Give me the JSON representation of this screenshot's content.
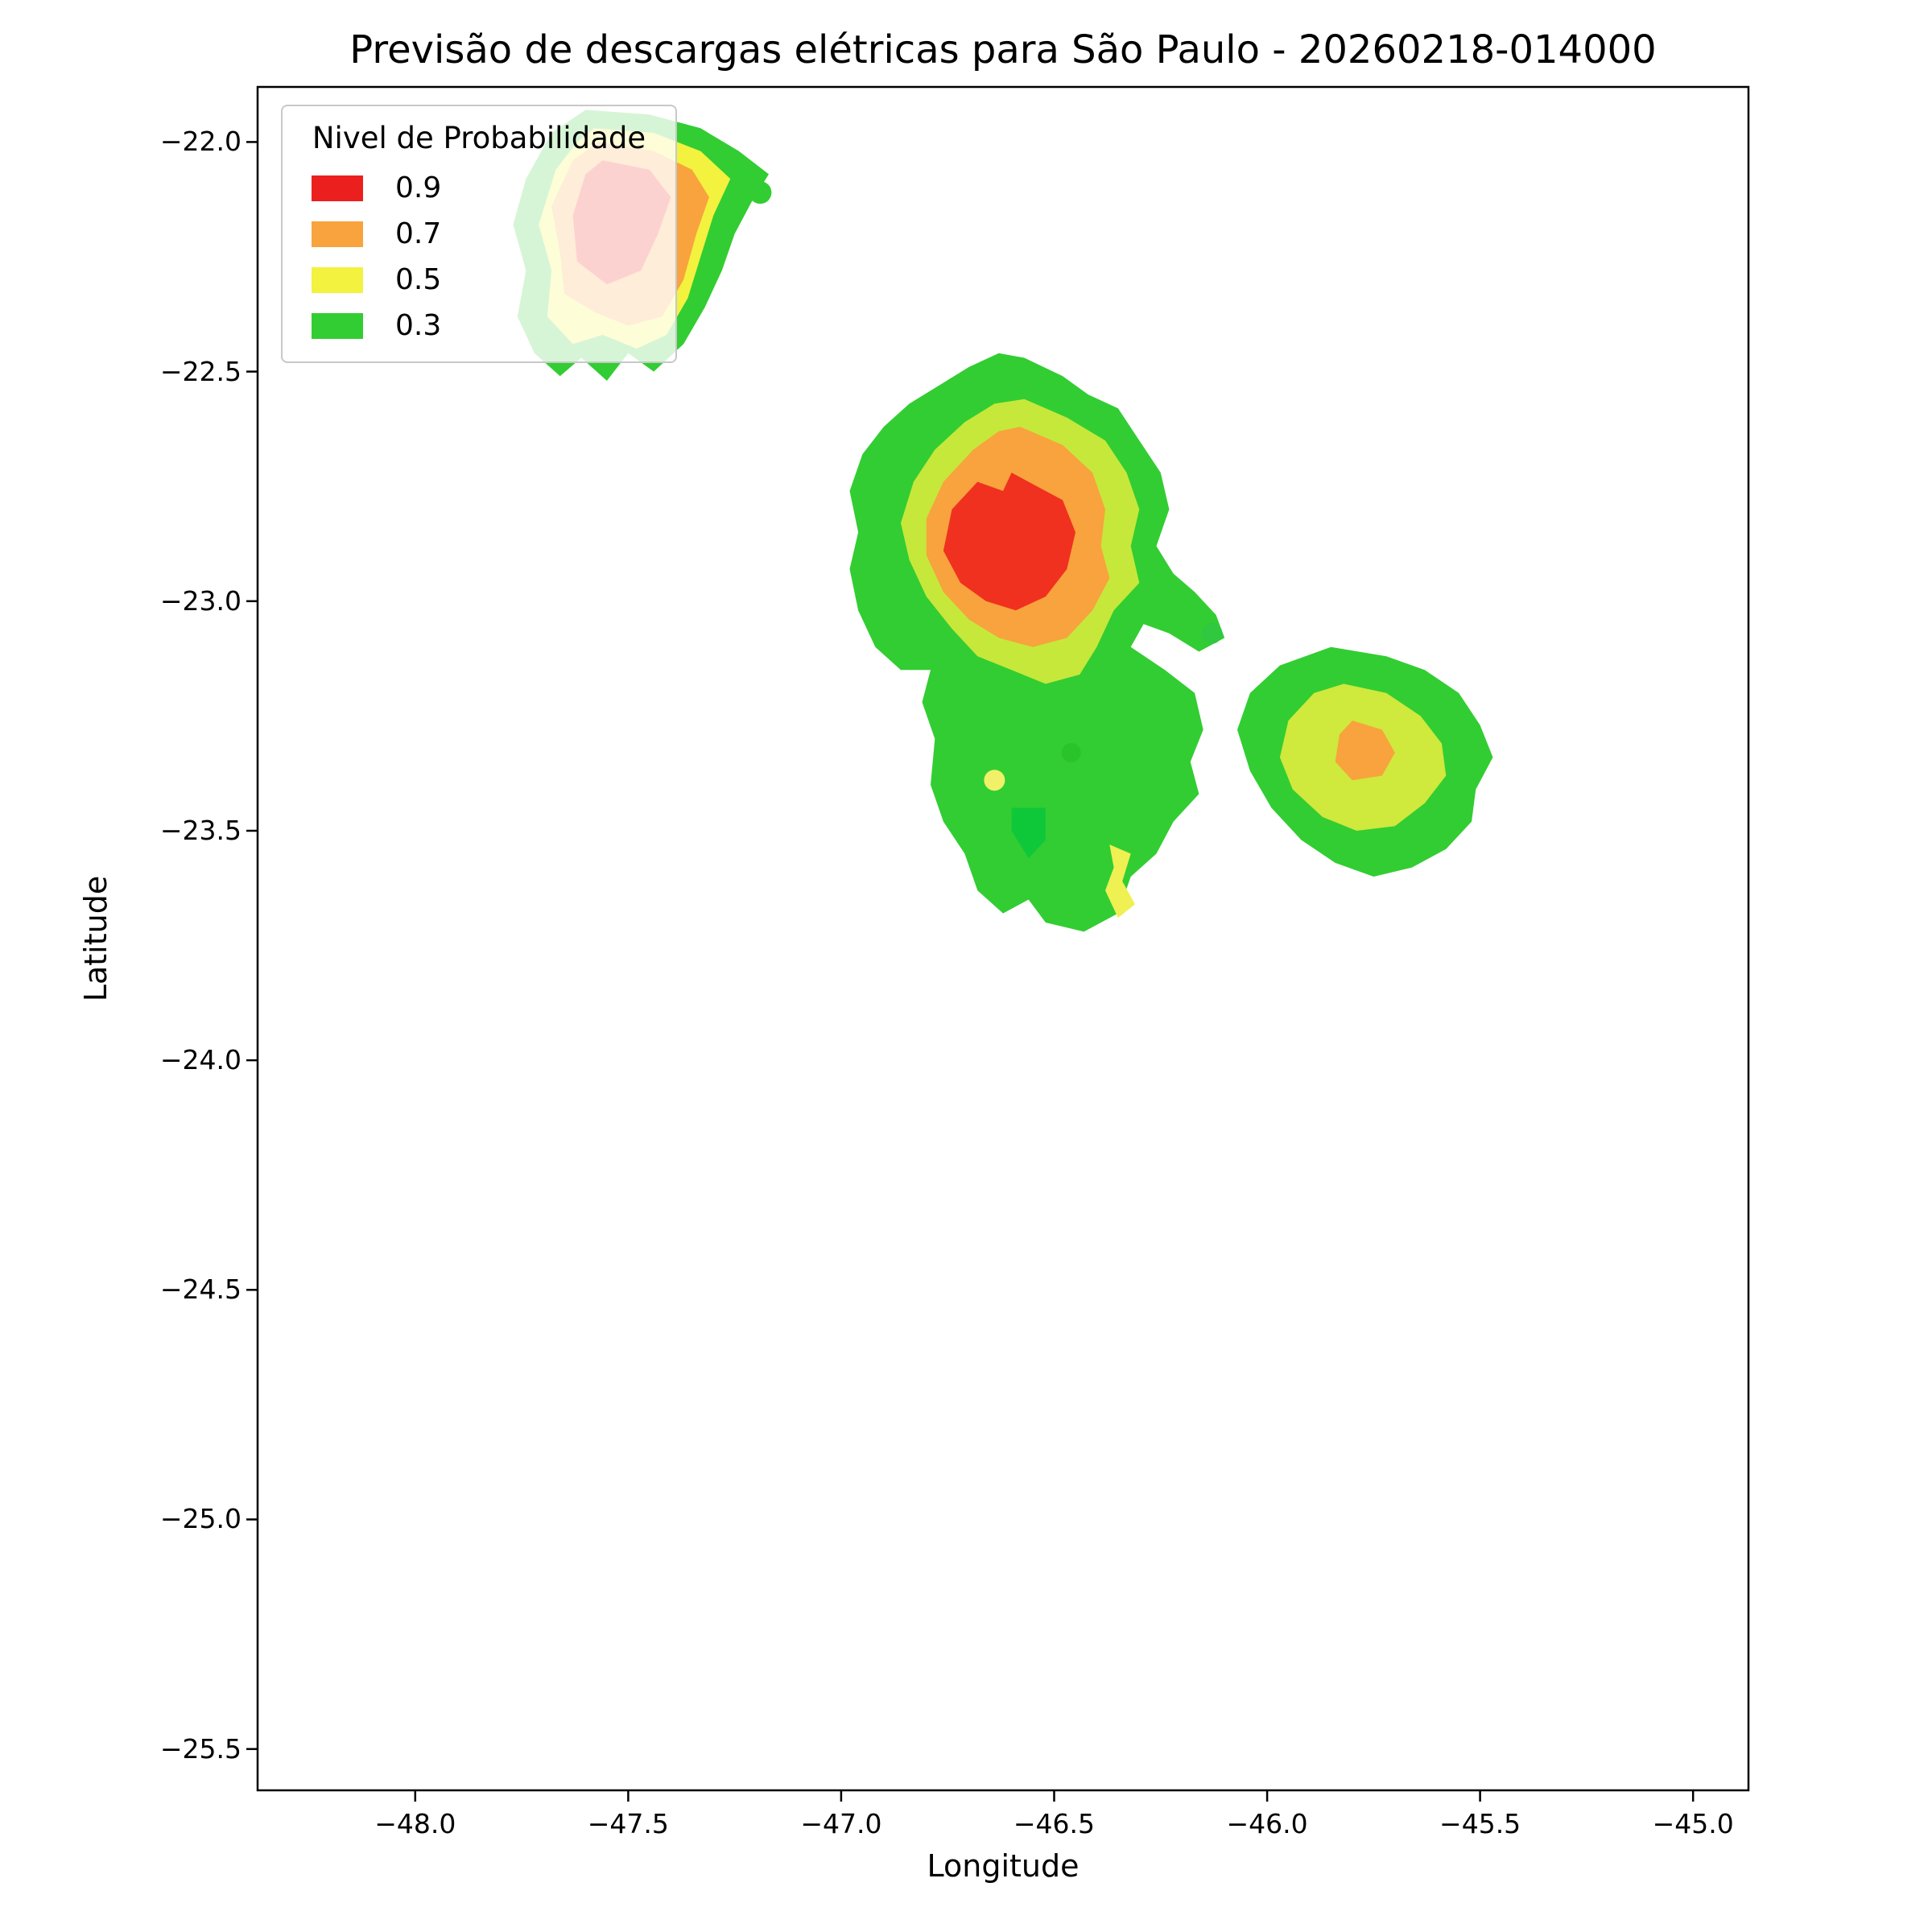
{
  "chart_data": {
    "type": "heatmap",
    "subtype": "filled_contour_probability_map",
    "title": "Previsão de descargas elétricas para São Paulo - 20260218-014000",
    "xlabel": "Longitude",
    "ylabel": "Latitude",
    "xlim": [
      -48.37,
      -44.87
    ],
    "ylim": [
      -25.59,
      -21.88
    ],
    "xticks": [
      -48.0,
      -47.5,
      -47.0,
      -46.5,
      -46.0,
      -45.5,
      -45.0
    ],
    "xtick_labels": [
      "−48.0",
      "−47.5",
      "−47.0",
      "−46.5",
      "−46.0",
      "−45.5",
      "−45.0"
    ],
    "yticks": [
      -22.0,
      -22.5,
      -23.0,
      -23.5,
      -24.0,
      -24.5,
      -25.0,
      -25.5
    ],
    "ytick_labels": [
      "−22.0",
      "−22.5",
      "−23.0",
      "−23.5",
      "−24.0",
      "−24.5",
      "−25.0",
      "−25.5"
    ],
    "grid": false,
    "levels": [
      0.3,
      0.5,
      0.7,
      0.9
    ],
    "legend": {
      "title": "Nivel de Probabilidade",
      "position": "upper left",
      "entries": [
        {
          "label": "0.9",
          "color": "#ec1f1f"
        },
        {
          "label": "0.7",
          "color": "#f8a33d"
        },
        {
          "label": "0.5",
          "color": "#f2f23f"
        },
        {
          "label": "0.3",
          "color": "#32cd32"
        }
      ]
    },
    "regions": [
      {
        "name": "nw-storm-cell-p30",
        "level": 0.3,
        "color": "#32cd32",
        "points": [
          [
            -47.6,
            -21.93
          ],
          [
            -47.45,
            -21.94
          ],
          [
            -47.33,
            -21.97
          ],
          [
            -47.24,
            -22.02
          ],
          [
            -47.17,
            -22.07
          ],
          [
            -47.21,
            -22.13
          ],
          [
            -47.25,
            -22.2
          ],
          [
            -47.28,
            -22.28
          ],
          [
            -47.32,
            -22.36
          ],
          [
            -47.37,
            -22.44
          ],
          [
            -47.44,
            -22.5
          ],
          [
            -47.5,
            -22.46
          ],
          [
            -47.55,
            -22.52
          ],
          [
            -47.61,
            -22.47
          ],
          [
            -47.66,
            -22.51
          ],
          [
            -47.72,
            -22.46
          ],
          [
            -47.76,
            -22.38
          ],
          [
            -47.74,
            -22.28
          ],
          [
            -47.77,
            -22.18
          ],
          [
            -47.74,
            -22.08
          ],
          [
            -47.68,
            -21.98
          ]
        ]
      },
      {
        "name": "nw-storm-cell-p50",
        "level": 0.5,
        "color": "#f2f23f",
        "points": [
          [
            -47.58,
            -21.97
          ],
          [
            -47.44,
            -21.98
          ],
          [
            -47.33,
            -22.02
          ],
          [
            -47.26,
            -22.08
          ],
          [
            -47.3,
            -22.16
          ],
          [
            -47.33,
            -22.25
          ],
          [
            -47.36,
            -22.34
          ],
          [
            -47.41,
            -22.42
          ],
          [
            -47.48,
            -22.45
          ],
          [
            -47.56,
            -22.42
          ],
          [
            -47.63,
            -22.44
          ],
          [
            -47.69,
            -22.38
          ],
          [
            -47.68,
            -22.28
          ],
          [
            -47.71,
            -22.18
          ],
          [
            -47.67,
            -22.06
          ],
          [
            -47.62,
            -22.0
          ]
        ]
      },
      {
        "name": "nw-storm-cell-p70",
        "level": 0.7,
        "color": "#f8a33d",
        "points": [
          [
            -47.57,
            -22.0
          ],
          [
            -47.44,
            -22.02
          ],
          [
            -47.35,
            -22.06
          ],
          [
            -47.31,
            -22.12
          ],
          [
            -47.34,
            -22.2
          ],
          [
            -47.37,
            -22.3
          ],
          [
            -47.42,
            -22.38
          ],
          [
            -47.5,
            -22.4
          ],
          [
            -47.58,
            -22.37
          ],
          [
            -47.65,
            -22.33
          ],
          [
            -47.66,
            -22.24
          ],
          [
            -47.68,
            -22.14
          ],
          [
            -47.63,
            -22.04
          ]
        ]
      },
      {
        "name": "nw-storm-cell-p90",
        "level": 0.9,
        "color": "#ee2219",
        "points": [
          [
            -47.56,
            -22.04
          ],
          [
            -47.45,
            -22.06
          ],
          [
            -47.4,
            -22.12
          ],
          [
            -47.43,
            -22.2
          ],
          [
            -47.47,
            -22.28
          ],
          [
            -47.55,
            -22.31
          ],
          [
            -47.62,
            -22.26
          ],
          [
            -47.63,
            -22.16
          ],
          [
            -47.6,
            -22.07
          ]
        ]
      },
      {
        "name": "central-storm-cell-p30",
        "level": 0.3,
        "color": "#32cd32",
        "points": [
          [
            -46.57,
            -22.47
          ],
          [
            -46.48,
            -22.51
          ],
          [
            -46.42,
            -22.55
          ],
          [
            -46.35,
            -22.58
          ],
          [
            -46.3,
            -22.65
          ],
          [
            -46.25,
            -22.72
          ],
          [
            -46.23,
            -22.8
          ],
          [
            -46.26,
            -22.88
          ],
          [
            -46.22,
            -22.94
          ],
          [
            -46.17,
            -22.98
          ],
          [
            -46.12,
            -23.03
          ],
          [
            -46.1,
            -23.08
          ],
          [
            -46.16,
            -23.11
          ],
          [
            -46.23,
            -23.07
          ],
          [
            -46.29,
            -23.05
          ],
          [
            -46.32,
            -23.1
          ],
          [
            -46.24,
            -23.15
          ],
          [
            -46.17,
            -23.2
          ],
          [
            -46.15,
            -23.28
          ],
          [
            -46.18,
            -23.35
          ],
          [
            -46.16,
            -23.42
          ],
          [
            -46.22,
            -23.48
          ],
          [
            -46.26,
            -23.55
          ],
          [
            -46.32,
            -23.6
          ],
          [
            -46.35,
            -23.68
          ],
          [
            -46.43,
            -23.72
          ],
          [
            -46.52,
            -23.7
          ],
          [
            -46.56,
            -23.65
          ],
          [
            -46.62,
            -23.68
          ],
          [
            -46.68,
            -23.63
          ],
          [
            -46.71,
            -23.55
          ],
          [
            -46.76,
            -23.48
          ],
          [
            -46.79,
            -23.4
          ],
          [
            -46.78,
            -23.3
          ],
          [
            -46.81,
            -23.22
          ],
          [
            -46.79,
            -23.15
          ],
          [
            -46.86,
            -23.15
          ],
          [
            -46.92,
            -23.1
          ],
          [
            -46.96,
            -23.02
          ],
          [
            -46.98,
            -22.93
          ],
          [
            -46.96,
            -22.85
          ],
          [
            -46.98,
            -22.76
          ],
          [
            -46.95,
            -22.68
          ],
          [
            -46.9,
            -22.62
          ],
          [
            -46.84,
            -22.57
          ],
          [
            -46.77,
            -22.53
          ],
          [
            -46.7,
            -22.49
          ],
          [
            -46.63,
            -22.46
          ]
        ]
      },
      {
        "name": "central-storm-cell-p50",
        "level": 0.5,
        "color": "#c6e83a",
        "points": [
          [
            -46.57,
            -22.56
          ],
          [
            -46.47,
            -22.6
          ],
          [
            -46.38,
            -22.65
          ],
          [
            -46.33,
            -22.72
          ],
          [
            -46.3,
            -22.8
          ],
          [
            -46.32,
            -22.88
          ],
          [
            -46.3,
            -22.96
          ],
          [
            -46.36,
            -23.02
          ],
          [
            -46.4,
            -23.1
          ],
          [
            -46.44,
            -23.16
          ],
          [
            -46.52,
            -23.18
          ],
          [
            -46.6,
            -23.15
          ],
          [
            -46.68,
            -23.12
          ],
          [
            -46.74,
            -23.06
          ],
          [
            -46.8,
            -22.99
          ],
          [
            -46.84,
            -22.91
          ],
          [
            -46.86,
            -22.83
          ],
          [
            -46.83,
            -22.74
          ],
          [
            -46.78,
            -22.67
          ],
          [
            -46.71,
            -22.61
          ],
          [
            -46.64,
            -22.57
          ]
        ]
      },
      {
        "name": "central-storm-cell-p70",
        "level": 0.7,
        "color": "#f8a33d",
        "points": [
          [
            -46.58,
            -22.62
          ],
          [
            -46.48,
            -22.66
          ],
          [
            -46.41,
            -22.72
          ],
          [
            -46.38,
            -22.8
          ],
          [
            -46.39,
            -22.88
          ],
          [
            -46.37,
            -22.95
          ],
          [
            -46.41,
            -23.02
          ],
          [
            -46.47,
            -23.08
          ],
          [
            -46.55,
            -23.1
          ],
          [
            -46.63,
            -23.08
          ],
          [
            -46.7,
            -23.04
          ],
          [
            -46.76,
            -22.98
          ],
          [
            -46.8,
            -22.9
          ],
          [
            -46.8,
            -22.82
          ],
          [
            -46.76,
            -22.74
          ],
          [
            -46.69,
            -22.67
          ],
          [
            -46.63,
            -22.63
          ]
        ]
      },
      {
        "name": "central-storm-cell-p90",
        "level": 0.9,
        "color": "#f03120",
        "points": [
          [
            -46.6,
            -22.72
          ],
          [
            -46.54,
            -22.75
          ],
          [
            -46.48,
            -22.78
          ],
          [
            -46.45,
            -22.85
          ],
          [
            -46.47,
            -22.93
          ],
          [
            -46.52,
            -22.99
          ],
          [
            -46.59,
            -23.02
          ],
          [
            -46.66,
            -23.0
          ],
          [
            -46.72,
            -22.96
          ],
          [
            -46.76,
            -22.89
          ],
          [
            -46.74,
            -22.8
          ],
          [
            -46.68,
            -22.74
          ],
          [
            -46.62,
            -22.76
          ]
        ]
      },
      {
        "name": "central-cell-small-yellow-patch",
        "level": 0.5,
        "color": "#eff052",
        "points": [
          [
            -46.37,
            -23.53
          ],
          [
            -46.32,
            -23.55
          ],
          [
            -46.34,
            -23.61
          ],
          [
            -46.31,
            -23.66
          ],
          [
            -46.35,
            -23.69
          ],
          [
            -46.38,
            -23.63
          ],
          [
            -46.36,
            -23.58
          ]
        ]
      },
      {
        "name": "central-cell-small-green-patch",
        "level": 0.3,
        "color": "#0fc83a",
        "points": [
          [
            -46.6,
            -23.45
          ],
          [
            -46.52,
            -23.45
          ],
          [
            -46.52,
            -23.52
          ],
          [
            -46.56,
            -23.56
          ],
          [
            -46.6,
            -23.5
          ]
        ]
      },
      {
        "name": "east-storm-cell-p30",
        "level": 0.3,
        "color": "#32cd32",
        "points": [
          [
            -45.85,
            -23.1
          ],
          [
            -45.72,
            -23.12
          ],
          [
            -45.63,
            -23.15
          ],
          [
            -45.55,
            -23.2
          ],
          [
            -45.5,
            -23.27
          ],
          [
            -45.47,
            -23.34
          ],
          [
            -45.51,
            -23.41
          ],
          [
            -45.52,
            -23.48
          ],
          [
            -45.58,
            -23.54
          ],
          [
            -45.66,
            -23.58
          ],
          [
            -45.75,
            -23.6
          ],
          [
            -45.84,
            -23.57
          ],
          [
            -45.92,
            -23.52
          ],
          [
            -45.99,
            -23.45
          ],
          [
            -46.04,
            -23.37
          ],
          [
            -46.07,
            -23.28
          ],
          [
            -46.04,
            -23.2
          ],
          [
            -45.97,
            -23.14
          ]
        ]
      },
      {
        "name": "east-storm-cell-p50",
        "level": 0.5,
        "color": "#cfe93c",
        "points": [
          [
            -45.82,
            -23.18
          ],
          [
            -45.72,
            -23.2
          ],
          [
            -45.64,
            -23.25
          ],
          [
            -45.59,
            -23.31
          ],
          [
            -45.58,
            -23.38
          ],
          [
            -45.63,
            -23.44
          ],
          [
            -45.7,
            -23.49
          ],
          [
            -45.79,
            -23.5
          ],
          [
            -45.87,
            -23.47
          ],
          [
            -45.94,
            -23.41
          ],
          [
            -45.97,
            -23.34
          ],
          [
            -45.95,
            -23.26
          ],
          [
            -45.89,
            -23.2
          ]
        ]
      },
      {
        "name": "east-storm-cell-p70",
        "level": 0.7,
        "color": "#f8a33d",
        "points": [
          [
            -45.8,
            -23.26
          ],
          [
            -45.73,
            -23.28
          ],
          [
            -45.7,
            -23.33
          ],
          [
            -45.73,
            -23.38
          ],
          [
            -45.8,
            -23.39
          ],
          [
            -45.84,
            -23.35
          ],
          [
            -45.83,
            -23.29
          ]
        ]
      }
    ],
    "markers": [
      {
        "name": "nw-small-green-marker",
        "lon": -47.19,
        "lat": -22.11,
        "r": 14,
        "color": "#32cd32"
      },
      {
        "name": "arm-tip-small-green-marker",
        "lon": -46.13,
        "lat": -23.07,
        "r": 13,
        "color": "#2fc83e"
      },
      {
        "name": "central-small-green-marker",
        "lon": -46.46,
        "lat": -23.33,
        "r": 12,
        "color": "#2bc32b"
      },
      {
        "name": "central-small-yellow-marker",
        "lon": -46.64,
        "lat": -23.39,
        "r": 13,
        "color": "#f0f168"
      }
    ]
  }
}
